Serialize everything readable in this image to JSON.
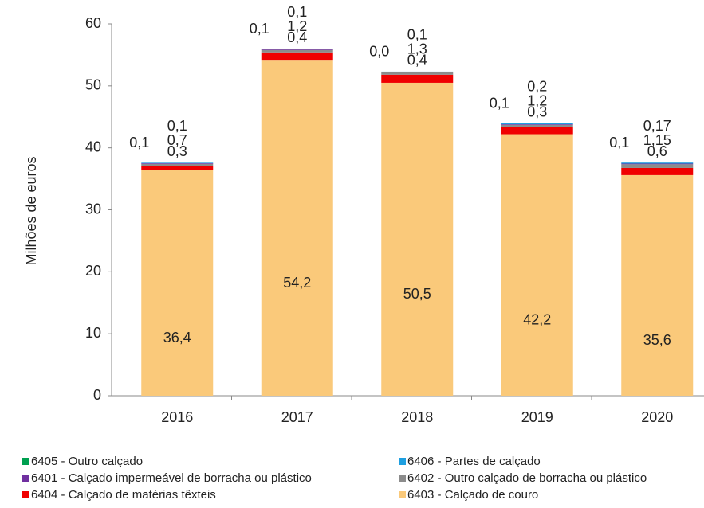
{
  "chart_data": {
    "type": "stacked_bar",
    "y_label": "Milhões de euros",
    "categories": [
      "2016",
      "2017",
      "2018",
      "2019",
      "2020"
    ],
    "ylim": [
      0,
      60
    ],
    "yticks": [
      0,
      10,
      20,
      30,
      40,
      50,
      60
    ],
    "series": [
      {
        "name": "6403 - Calçado de couro",
        "color": "#FAC97A",
        "values": [
          36.4,
          54.2,
          50.5,
          42.2,
          35.6
        ],
        "value_labels": [
          "36,4",
          "54,2",
          "50,5",
          "42,2",
          "35,6"
        ]
      },
      {
        "name": "6404 - Calçado de matérias têxteis",
        "color": "#F00000",
        "values": [
          0.7,
          1.2,
          1.3,
          1.2,
          1.15
        ],
        "value_labels": [
          "0,7",
          "1,2",
          "1,3",
          "1,2",
          "1,15"
        ]
      },
      {
        "name": "6402 - Outro calçado de borracha ou plástico",
        "color": "#8C8C8C",
        "values": [
          0.3,
          0.4,
          0.4,
          0.3,
          0.6
        ],
        "value_labels": [
          "0,3",
          "0,4",
          "0,4",
          "0,3",
          "0,6"
        ]
      },
      {
        "name": "6401 - Calçado impermeável de borracha ou plástico",
        "color": "#7030A0",
        "values": [
          0.1,
          0.1,
          0.0,
          0.1,
          0.1
        ],
        "value_labels": [
          "0,1",
          "0,1",
          "0,0",
          "0,1",
          "0,1"
        ]
      },
      {
        "name": "6406 - Partes de calçado",
        "color": "#1E9FE0",
        "values": [
          0.1,
          0.1,
          0.1,
          0.2,
          0.17
        ],
        "value_labels": [
          "0,1",
          "0,1",
          "0,1",
          "0,2",
          "0,17"
        ]
      },
      {
        "name": "6405 - Outro calçado",
        "color": "#00A050",
        "values": [
          null,
          null,
          null,
          null,
          null
        ]
      }
    ]
  }
}
